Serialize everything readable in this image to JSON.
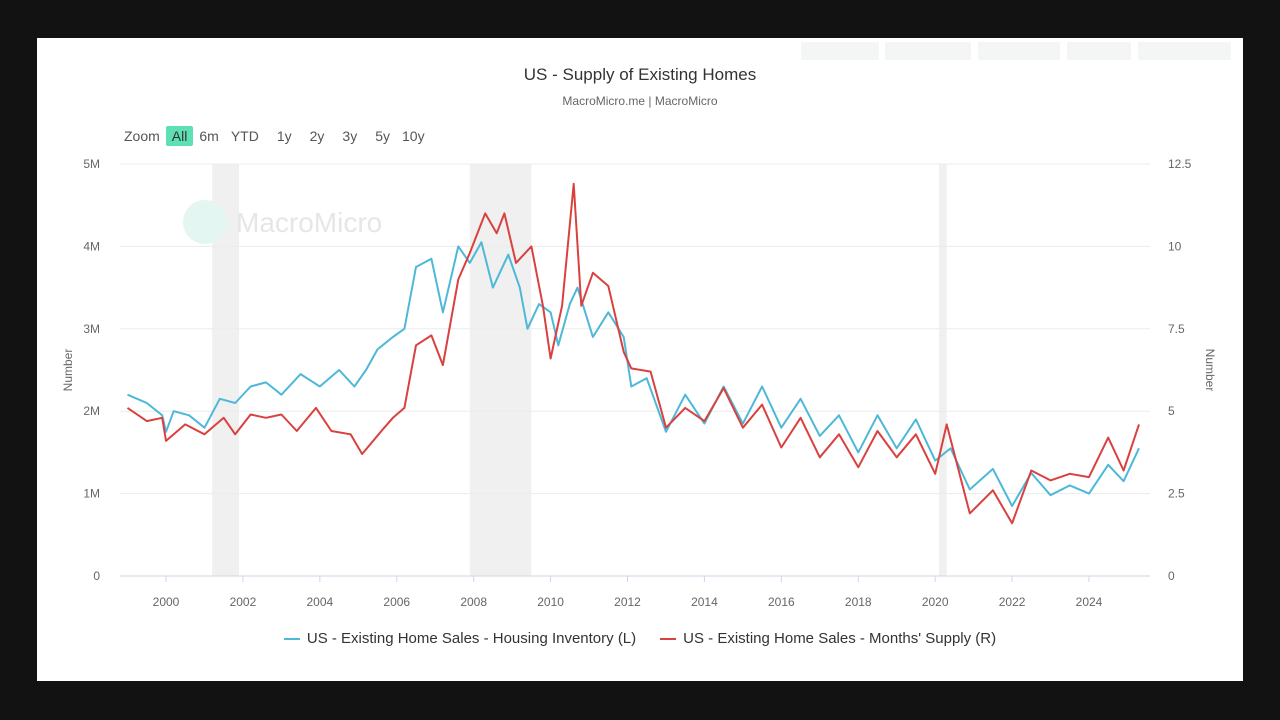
{
  "chart_data": {
    "type": "line",
    "title": "US - Supply of Existing Homes",
    "subtitle": "MacroMicro.me | MacroMicro",
    "watermark": "MacroMicro",
    "xlabel": "",
    "ylabel_left": "Number",
    "ylabel_right": "Number",
    "xlim": [
      1999,
      2025.5
    ],
    "ylim_left": [
      0,
      5000000
    ],
    "ylim_right": [
      0,
      12.5
    ],
    "x_ticks": [
      "2000",
      "2002",
      "2004",
      "2006",
      "2008",
      "2010",
      "2012",
      "2014",
      "2016",
      "2018",
      "2020",
      "2022",
      "2024"
    ],
    "y_ticks_left": [
      "0",
      "1M",
      "2M",
      "3M",
      "4M",
      "5M"
    ],
    "y_ticks_right": [
      "0",
      "2.5",
      "5",
      "7.5",
      "10",
      "12.5"
    ],
    "grid": true,
    "legend_position": "bottom",
    "recession_bands": [
      [
        2001.2,
        2001.9
      ],
      [
        2007.9,
        2009.5
      ],
      [
        2020.1,
        2020.3
      ]
    ],
    "series": [
      {
        "name": "US - Existing Home Sales - Housing Inventory (L)",
        "axis": "left",
        "color": "#4db8d8",
        "points": [
          [
            1999.0,
            2.2
          ],
          [
            1999.5,
            2.1
          ],
          [
            1999.9,
            1.95
          ],
          [
            2000.0,
            1.75
          ],
          [
            2000.2,
            2.0
          ],
          [
            2000.6,
            1.95
          ],
          [
            2001.0,
            1.8
          ],
          [
            2001.4,
            2.15
          ],
          [
            2001.8,
            2.1
          ],
          [
            2002.2,
            2.3
          ],
          [
            2002.6,
            2.35
          ],
          [
            2003.0,
            2.2
          ],
          [
            2003.5,
            2.45
          ],
          [
            2004.0,
            2.3
          ],
          [
            2004.5,
            2.5
          ],
          [
            2004.9,
            2.3
          ],
          [
            2005.2,
            2.5
          ],
          [
            2005.5,
            2.75
          ],
          [
            2005.9,
            2.9
          ],
          [
            2006.2,
            3.0
          ],
          [
            2006.5,
            3.75
          ],
          [
            2006.9,
            3.85
          ],
          [
            2007.2,
            3.2
          ],
          [
            2007.6,
            4.0
          ],
          [
            2007.9,
            3.8
          ],
          [
            2008.2,
            4.05
          ],
          [
            2008.5,
            3.5
          ],
          [
            2008.9,
            3.9
          ],
          [
            2009.2,
            3.5
          ],
          [
            2009.4,
            3.0
          ],
          [
            2009.7,
            3.3
          ],
          [
            2010.0,
            3.2
          ],
          [
            2010.2,
            2.8
          ],
          [
            2010.5,
            3.3
          ],
          [
            2010.7,
            3.5
          ],
          [
            2011.1,
            2.9
          ],
          [
            2011.5,
            3.2
          ],
          [
            2011.9,
            2.9
          ],
          [
            2012.1,
            2.3
          ],
          [
            2012.5,
            2.4
          ],
          [
            2013.0,
            1.75
          ],
          [
            2013.5,
            2.2
          ],
          [
            2014.0,
            1.85
          ],
          [
            2014.5,
            2.3
          ],
          [
            2015.0,
            1.85
          ],
          [
            2015.5,
            2.3
          ],
          [
            2016.0,
            1.8
          ],
          [
            2016.5,
            2.15
          ],
          [
            2017.0,
            1.7
          ],
          [
            2017.5,
            1.95
          ],
          [
            2018.0,
            1.5
          ],
          [
            2018.5,
            1.95
          ],
          [
            2019.0,
            1.55
          ],
          [
            2019.5,
            1.9
          ],
          [
            2020.0,
            1.4
          ],
          [
            2020.4,
            1.55
          ],
          [
            2020.9,
            1.05
          ],
          [
            2021.5,
            1.3
          ],
          [
            2022.0,
            0.85
          ],
          [
            2022.5,
            1.25
          ],
          [
            2023.0,
            0.98
          ],
          [
            2023.5,
            1.1
          ],
          [
            2024.0,
            1.0
          ],
          [
            2024.5,
            1.35
          ],
          [
            2024.9,
            1.15
          ],
          [
            2025.3,
            1.55
          ]
        ],
        "unit": "M"
      },
      {
        "name": "US - Existing Home Sales - Months' Supply (R)",
        "axis": "right",
        "color": "#d9413f",
        "points": [
          [
            1999.0,
            5.1
          ],
          [
            1999.5,
            4.7
          ],
          [
            1999.9,
            4.8
          ],
          [
            2000.0,
            4.1
          ],
          [
            2000.5,
            4.6
          ],
          [
            2001.0,
            4.3
          ],
          [
            2001.5,
            4.8
          ],
          [
            2001.8,
            4.3
          ],
          [
            2002.2,
            4.9
          ],
          [
            2002.6,
            4.8
          ],
          [
            2003.0,
            4.9
          ],
          [
            2003.4,
            4.4
          ],
          [
            2003.9,
            5.1
          ],
          [
            2004.3,
            4.4
          ],
          [
            2004.8,
            4.3
          ],
          [
            2005.1,
            3.7
          ],
          [
            2005.6,
            4.4
          ],
          [
            2005.9,
            4.8
          ],
          [
            2006.2,
            5.1
          ],
          [
            2006.5,
            7.0
          ],
          [
            2006.9,
            7.3
          ],
          [
            2007.2,
            6.4
          ],
          [
            2007.6,
            9.0
          ],
          [
            2007.9,
            9.8
          ],
          [
            2008.3,
            11.0
          ],
          [
            2008.6,
            10.4
          ],
          [
            2008.8,
            11.0
          ],
          [
            2009.1,
            9.5
          ],
          [
            2009.5,
            10.0
          ],
          [
            2009.8,
            8.2
          ],
          [
            2010.0,
            6.6
          ],
          [
            2010.3,
            8.2
          ],
          [
            2010.6,
            11.9
          ],
          [
            2010.8,
            8.2
          ],
          [
            2011.1,
            9.2
          ],
          [
            2011.5,
            8.8
          ],
          [
            2011.9,
            6.8
          ],
          [
            2012.1,
            6.3
          ],
          [
            2012.6,
            6.2
          ],
          [
            2013.0,
            4.5
          ],
          [
            2013.5,
            5.1
          ],
          [
            2014.0,
            4.7
          ],
          [
            2014.5,
            5.7
          ],
          [
            2015.0,
            4.5
          ],
          [
            2015.5,
            5.2
          ],
          [
            2016.0,
            3.9
          ],
          [
            2016.5,
            4.8
          ],
          [
            2017.0,
            3.6
          ],
          [
            2017.5,
            4.3
          ],
          [
            2018.0,
            3.3
          ],
          [
            2018.5,
            4.4
          ],
          [
            2019.0,
            3.6
          ],
          [
            2019.5,
            4.3
          ],
          [
            2020.0,
            3.1
          ],
          [
            2020.3,
            4.6
          ],
          [
            2020.9,
            1.9
          ],
          [
            2021.5,
            2.6
          ],
          [
            2022.0,
            1.6
          ],
          [
            2022.5,
            3.2
          ],
          [
            2023.0,
            2.9
          ],
          [
            2023.5,
            3.1
          ],
          [
            2024.0,
            3.0
          ],
          [
            2024.5,
            4.2
          ],
          [
            2024.9,
            3.2
          ],
          [
            2025.3,
            4.6
          ]
        ]
      }
    ]
  },
  "zoom": {
    "label": "Zoom",
    "buttons": [
      "All",
      "6m",
      "YTD",
      "1y",
      "2y",
      "3y",
      "5y",
      "10y"
    ],
    "active": "All"
  },
  "colors": {
    "accent": "#5ee0b4",
    "inventory": "#4db8d8",
    "supply": "#d9413f"
  }
}
